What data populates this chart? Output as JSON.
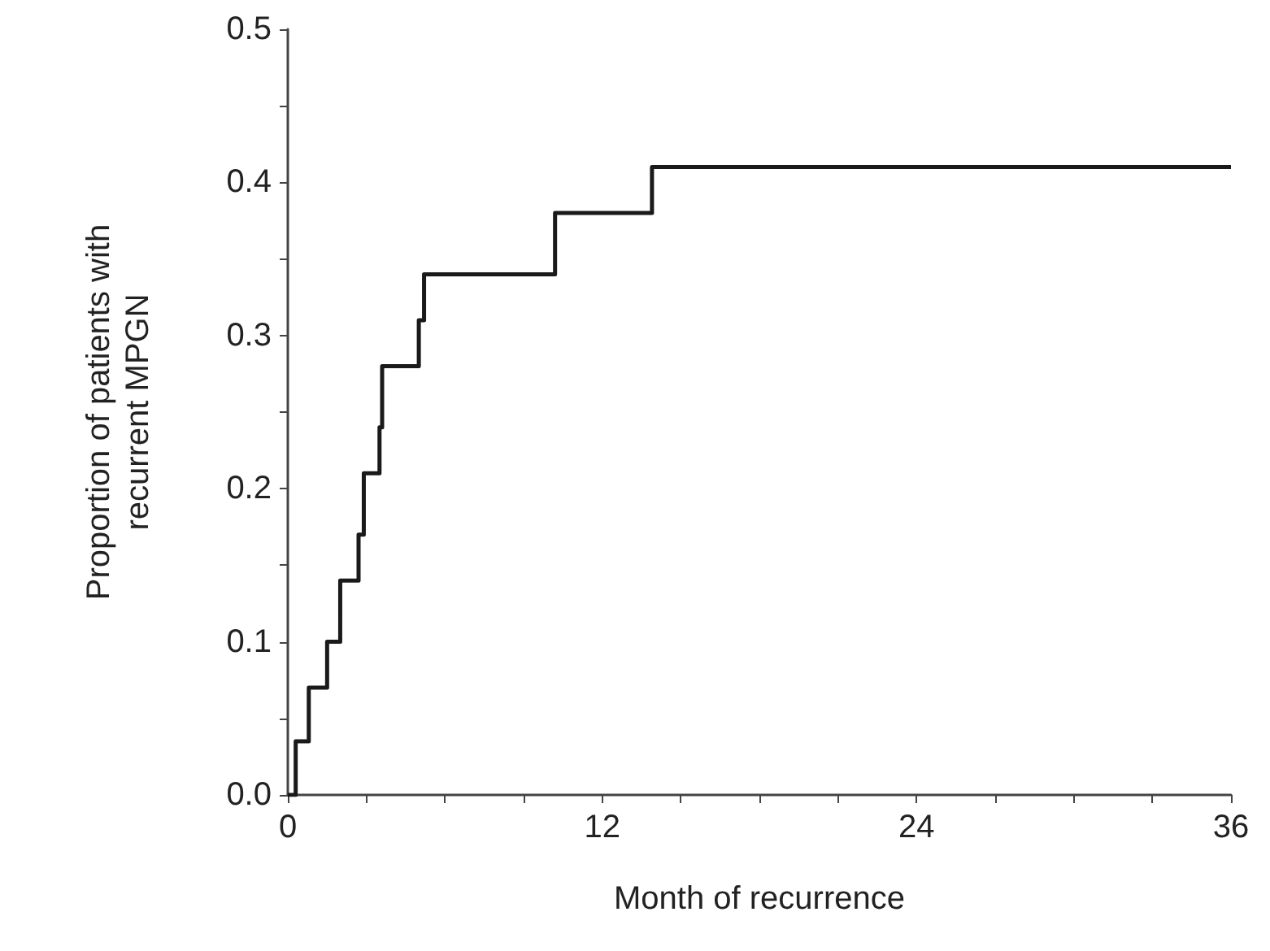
{
  "chart_data": {
    "type": "step",
    "xlabel": "Month of recurrence",
    "ylabel": "Proportion of patients with\nrecurrent MPGN",
    "x": [
      0,
      0.3,
      0.8,
      1.5,
      2.0,
      2.7,
      2.9,
      3.5,
      3.6,
      5.0,
      5.2,
      10.2,
      13.9,
      36
    ],
    "series": [
      {
        "color": "#1a1a1a",
        "values": [
          0,
          0.035,
          0.07,
          0.1,
          0.14,
          0.17,
          0.21,
          0.24,
          0.28,
          0.31,
          0.34,
          0.38,
          0.41,
          0.41
        ]
      }
    ],
    "xlim": [
      0,
      36
    ],
    "xticks": [
      0,
      {
        "value": 3,
        "label": null
      },
      {
        "value": 6,
        "label": null
      },
      {
        "value": 9,
        "label": null
      },
      12,
      {
        "value": 15,
        "label": null
      },
      {
        "value": 18,
        "label": null
      },
      {
        "value": 21,
        "label": null
      },
      24,
      {
        "value": 27,
        "label": null
      },
      {
        "value": 30,
        "label": null
      },
      {
        "value": 33,
        "label": null
      },
      36
    ],
    "ylim": [
      0,
      0.5
    ],
    "yticks": [
      {
        "value": 0,
        "label": "0.0"
      },
      {
        "value": 0.05,
        "label": null
      },
      0.1,
      {
        "value": 0.15,
        "label": null
      },
      0.2,
      {
        "value": 0.25,
        "label": null
      },
      0.3,
      {
        "value": 0.35,
        "label": null
      },
      0.4,
      {
        "value": 0.45,
        "label": null
      },
      0.5
    ],
    "grid": false,
    "marker": "none",
    "line_style": "solid"
  }
}
